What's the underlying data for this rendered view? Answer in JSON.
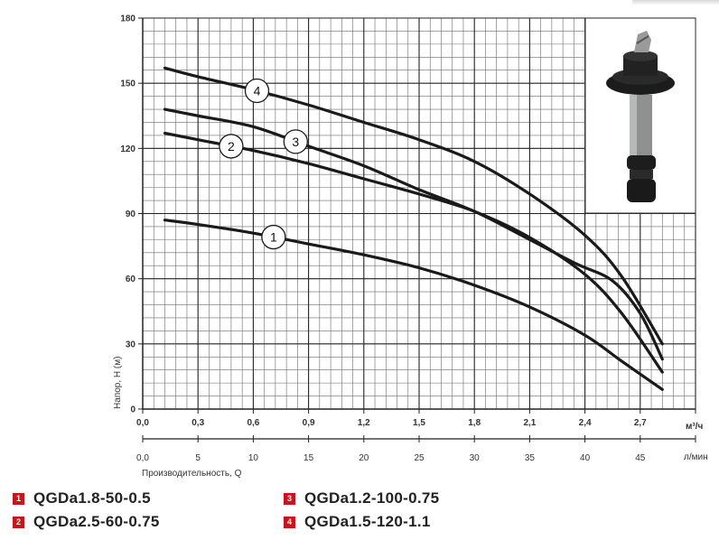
{
  "chart_data": {
    "type": "line",
    "ylabel": "Напор, Н (м)",
    "xlabel": "Производительность, Q",
    "x_unit_primary": "м³/ч",
    "x_unit_secondary": "л/мин",
    "xlim": [
      0,
      3.0
    ],
    "ylim": [
      0,
      180
    ],
    "x_ticks_primary": [
      "0,0",
      "0,3",
      "0,6",
      "0,9",
      "1,2",
      "1,5",
      "1,8",
      "2,1",
      "2,4",
      "2,7"
    ],
    "x_ticks_primary_values": [
      0,
      0.3,
      0.6,
      0.9,
      1.2,
      1.5,
      1.8,
      2.1,
      2.4,
      2.7
    ],
    "x_ticks_secondary": [
      "0,0",
      "5",
      "10",
      "15",
      "20",
      "25",
      "30",
      "35",
      "40",
      "45"
    ],
    "y_ticks": [
      "0",
      "30",
      "60",
      "90",
      "120",
      "150",
      "180"
    ],
    "y_ticks_values": [
      0,
      30,
      60,
      90,
      120,
      150,
      180
    ],
    "grid": true,
    "series": [
      {
        "name": "QGDa1.8-50-0.5",
        "marker": "1",
        "marker_at": 0.71,
        "x": [
          0.12,
          0.3,
          0.6,
          0.9,
          1.2,
          1.5,
          1.8,
          2.1,
          2.4,
          2.6,
          2.82
        ],
        "y": [
          87,
          85,
          81,
          76,
          71,
          65,
          57,
          47,
          34,
          22,
          9
        ]
      },
      {
        "name": "QGDa2.5-60-0.75",
        "marker": "2",
        "marker_at": 0.48,
        "x": [
          0.12,
          0.3,
          0.6,
          0.9,
          1.2,
          1.5,
          1.8,
          2.1,
          2.4,
          2.6,
          2.82
        ],
        "y": [
          127,
          124,
          119,
          113,
          106,
          99,
          91,
          79,
          62,
          44,
          17
        ]
      },
      {
        "name": "QGDa1.2-100-0.75",
        "marker": "3",
        "marker_at": 0.83,
        "x": [
          0.12,
          0.3,
          0.6,
          0.9,
          1.2,
          1.5,
          1.8,
          2.1,
          2.35,
          2.55,
          2.7,
          2.82
        ],
        "y": [
          138,
          135,
          130,
          121,
          112,
          101,
          91,
          78,
          67,
          59,
          44,
          23
        ]
      },
      {
        "name": "QGDa1.5-120-1.1",
        "marker": "4",
        "marker_at": 0.62,
        "x": [
          0.12,
          0.3,
          0.6,
          0.9,
          1.2,
          1.5,
          1.8,
          2.1,
          2.4,
          2.6,
          2.82
        ],
        "y": [
          157,
          153,
          147,
          140,
          132,
          124,
          114,
          99,
          80,
          61,
          30
        ]
      }
    ]
  },
  "legend": [
    {
      "badge": "1",
      "label": "QGDa1.8-50-0.5"
    },
    {
      "badge": "2",
      "label": "QGDa2.5-60-0.75"
    },
    {
      "badge": "3",
      "label": "QGDa1.2-100-0.75"
    },
    {
      "badge": "4",
      "label": "QGDa1.5-120-1.1"
    }
  ]
}
